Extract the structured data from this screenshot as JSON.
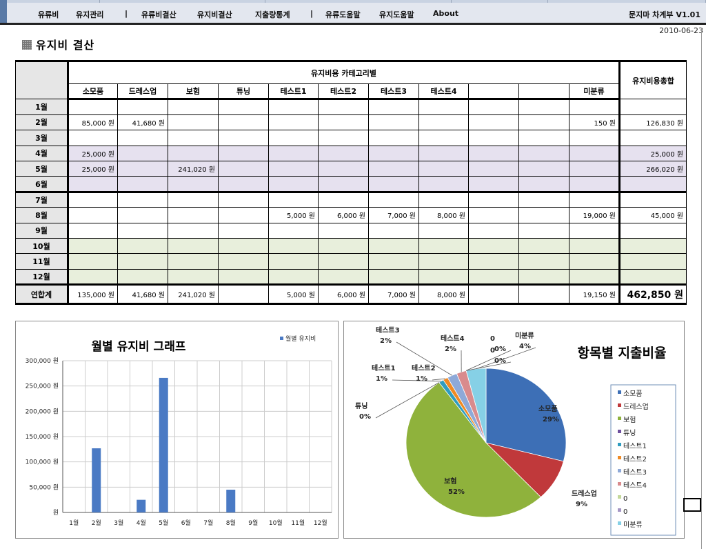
{
  "nav": {
    "items": [
      "유류비",
      "유지관리",
      "유류비결산",
      "유지비결산",
      "지출량통계",
      "유류도움말",
      "유지도움말",
      "About"
    ],
    "separator": "|",
    "app_title": "문지마 차계부 V1.01"
  },
  "date": "2010-06-23",
  "page_title": "유지비 결산",
  "table": {
    "category_header": "유지비용 카테고리별",
    "total_header": "유지비용총합",
    "columns": [
      "소모품",
      "드레스업",
      "보험",
      "튜닝",
      "테스트1",
      "테스트2",
      "테스트3",
      "테스트4",
      "",
      "",
      "미분류"
    ],
    "rows": [
      {
        "month": "1월",
        "values": [
          "",
          "",
          "",
          "",
          "",
          "",
          "",
          "",
          "",
          "",
          ""
        ],
        "total": ""
      },
      {
        "month": "2월",
        "values": [
          "85,000 원",
          "41,680 원",
          "",
          "",
          "",
          "",
          "",
          "",
          "",
          "",
          "150 원"
        ],
        "total": "126,830 원"
      },
      {
        "month": "3월",
        "values": [
          "",
          "",
          "",
          "",
          "",
          "",
          "",
          "",
          "",
          "",
          ""
        ],
        "total": ""
      },
      {
        "month": "4월",
        "values": [
          "25,000 원",
          "",
          "",
          "",
          "",
          "",
          "",
          "",
          "",
          "",
          ""
        ],
        "total": "25,000 원"
      },
      {
        "month": "5월",
        "values": [
          "25,000 원",
          "",
          "241,020 원",
          "",
          "",
          "",
          "",
          "",
          "",
          "",
          ""
        ],
        "total": "266,020 원"
      },
      {
        "month": "6월",
        "values": [
          "",
          "",
          "",
          "",
          "",
          "",
          "",
          "",
          "",
          "",
          ""
        ],
        "total": ""
      },
      {
        "month": "7월",
        "values": [
          "",
          "",
          "",
          "",
          "",
          "",
          "",
          "",
          "",
          "",
          ""
        ],
        "total": ""
      },
      {
        "month": "8월",
        "values": [
          "",
          "",
          "",
          "",
          "5,000 원",
          "6,000 원",
          "7,000 원",
          "8,000 원",
          "",
          "",
          "19,000 원"
        ],
        "total": "45,000 원"
      },
      {
        "month": "9월",
        "values": [
          "",
          "",
          "",
          "",
          "",
          "",
          "",
          "",
          "",
          "",
          ""
        ],
        "total": ""
      },
      {
        "month": "10월",
        "values": [
          "",
          "",
          "",
          "",
          "",
          "",
          "",
          "",
          "",
          "",
          ""
        ],
        "total": ""
      },
      {
        "month": "11월",
        "values": [
          "",
          "",
          "",
          "",
          "",
          "",
          "",
          "",
          "",
          "",
          ""
        ],
        "total": ""
      },
      {
        "month": "12월",
        "values": [
          "",
          "",
          "",
          "",
          "",
          "",
          "",
          "",
          "",
          "",
          ""
        ],
        "total": ""
      }
    ],
    "sum_row": {
      "label": "연합계",
      "values": [
        "135,000 원",
        "41,680 원",
        "241,020 원",
        "",
        "5,000 원",
        "6,000 원",
        "7,000 원",
        "8,000 원",
        "",
        "",
        "19,150 원"
      ],
      "total": "462,850 원"
    }
  },
  "chart_data": [
    {
      "type": "bar",
      "title": "월별 유지비 그래프",
      "legend": "월별 유지비",
      "legend_position": "top-right",
      "categories": [
        "1월",
        "2월",
        "3월",
        "4월",
        "5월",
        "6월",
        "7월",
        "8월",
        "9월",
        "10월",
        "11월",
        "12월"
      ],
      "values": [
        0,
        126830,
        0,
        25000,
        266020,
        0,
        0,
        45000,
        0,
        0,
        0,
        0
      ],
      "y_ticks": [
        "원",
        "50,000 원",
        "100,000 원",
        "150,000 원",
        "200,000 원",
        "250,000 원",
        "300,000 원"
      ],
      "ylim": [
        0,
        300000
      ],
      "bar_color": "#4a7ac4",
      "grid": true
    },
    {
      "type": "pie",
      "title": "항목별 지출비율",
      "legend_position": "right",
      "slices": [
        {
          "name": "소모품",
          "value": 29,
          "label": "소모품\n29%",
          "color": "#3d6fb6"
        },
        {
          "name": "드레스업",
          "value": 9,
          "label": "드레스업\n9%",
          "color": "#c0393b"
        },
        {
          "name": "보험",
          "value": 52,
          "label": "보험\n52%",
          "color": "#8fb23c"
        },
        {
          "name": "튜닝",
          "value": 0,
          "label": "튜닝\n0%",
          "color": "#6e4f9e"
        },
        {
          "name": "테스트1",
          "value": 1,
          "label": "테스트1\n1%",
          "color": "#2f9cc0"
        },
        {
          "name": "테스트2",
          "value": 1,
          "label": "테스트2\n1%",
          "color": "#f08a24"
        },
        {
          "name": "테스트3",
          "value": 2,
          "label": "테스트3\n2%",
          "color": "#8ea9d8"
        },
        {
          "name": "테스트4",
          "value": 2,
          "label": "테스트4\n2%",
          "color": "#d98b8d"
        },
        {
          "name": "0",
          "value": 0,
          "label": "0\n0%",
          "color": "#c3d89a"
        },
        {
          "name": "0",
          "value": 0,
          "label": "0\n0%",
          "color": "#a596c4"
        },
        {
          "name": "미분류",
          "value": 4,
          "label": "미분류\n4%",
          "color": "#86d0e6"
        }
      ]
    }
  ]
}
